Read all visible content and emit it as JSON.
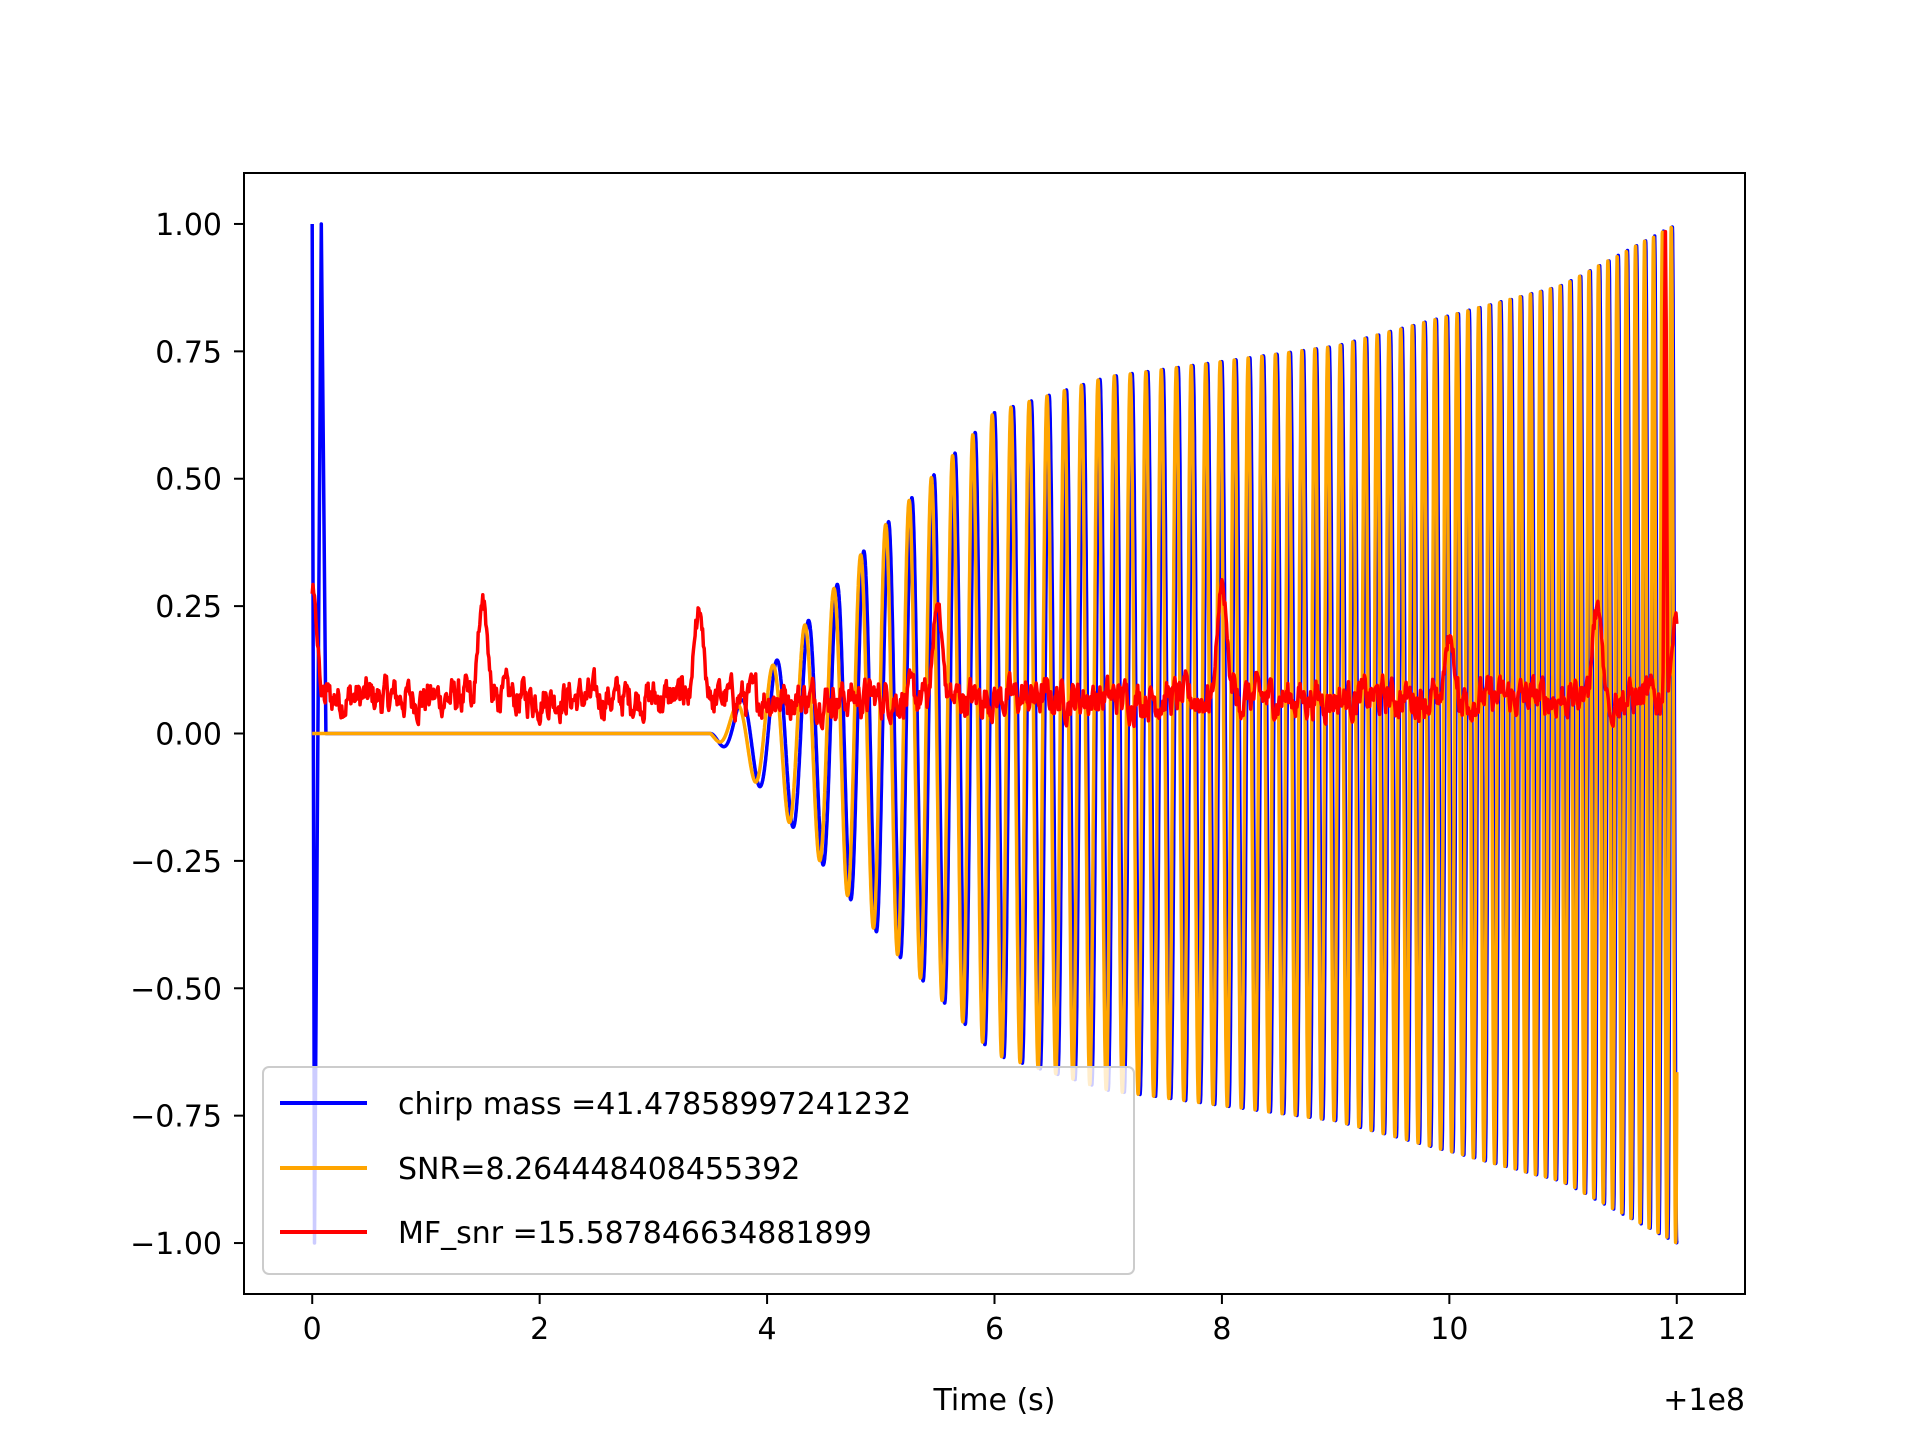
{
  "chart_data": {
    "type": "line",
    "title": "",
    "xlabel": "Time (s)",
    "ylabel": "",
    "x_offset_label": "+1e8",
    "xlim": [
      -0.6,
      12.6
    ],
    "ylim": [
      -1.1,
      1.1
    ],
    "x_ticks": [
      0,
      2,
      4,
      6,
      8,
      10,
      12
    ],
    "x_tick_labels": [
      "0",
      "2",
      "4",
      "6",
      "8",
      "10",
      "12"
    ],
    "y_ticks": [
      1.0,
      0.75,
      0.5,
      0.25,
      0.0,
      -0.25,
      -0.5,
      -0.75,
      -1.0
    ],
    "y_tick_labels": [
      "1.00",
      "0.75",
      "0.50",
      "0.25",
      "0.00",
      "−0.25",
      "−0.50",
      "−0.75",
      "−1.00"
    ],
    "grid": false,
    "legend_position": "lower-left",
    "colors": {
      "chirp": "#0000ff",
      "snr": "#ffa500",
      "mf": "#ff0000"
    },
    "legend": [
      {
        "label": "chirp mass =41.47858997241232",
        "color": "#0000ff"
      },
      {
        "label": "SNR=8.264448408455392",
        "color": "#ffa500"
      },
      {
        "label": "MF_snr =15.587846634881899",
        "color": "#ff0000"
      }
    ],
    "series": [
      {
        "name": "chirp mass =41.47858997241232",
        "kind": "chirp-waveform",
        "x_start": 0,
        "x_end": 12,
        "onset": 3.5,
        "envelope": [
          [
            3.5,
            0.0
          ],
          [
            4.0,
            0.12
          ],
          [
            5.0,
            0.4
          ],
          [
            6.0,
            0.63
          ],
          [
            7.0,
            0.7
          ],
          [
            8.0,
            0.73
          ],
          [
            9.0,
            0.76
          ],
          [
            10.0,
            0.82
          ],
          [
            11.0,
            0.88
          ],
          [
            12.0,
            1.0
          ]
        ],
        "cycles_per_s": [
          [
            3.5,
            2.6
          ],
          [
            6.0,
            6.0
          ],
          [
            9.0,
            9.0
          ],
          [
            12.0,
            13.0
          ]
        ],
        "initial_spike": {
          "x": [
            0.0,
            0.02,
            0.08
          ],
          "y": [
            1.0,
            -1.0,
            1.0
          ]
        }
      },
      {
        "name": "SNR=8.264448408455392",
        "kind": "chirp-waveform",
        "x_start": 0,
        "x_end": 12,
        "onset": 3.5,
        "phase_lead_cycles": 0.12,
        "envelope": [
          [
            3.5,
            0.0
          ],
          [
            4.0,
            0.12
          ],
          [
            5.0,
            0.4
          ],
          [
            6.0,
            0.63
          ],
          [
            7.0,
            0.7
          ],
          [
            8.0,
            0.73
          ],
          [
            9.0,
            0.76
          ],
          [
            10.0,
            0.82
          ],
          [
            11.0,
            0.88
          ],
          [
            12.0,
            1.0
          ]
        ],
        "cycles_per_s": [
          [
            3.5,
            2.6
          ],
          [
            6.0,
            6.0
          ],
          [
            9.0,
            9.0
          ],
          [
            12.0,
            13.0
          ]
        ]
      },
      {
        "name": "MF_snr =15.587846634881899",
        "kind": "noise-trace",
        "x_start": 0,
        "x_end": 12,
        "baseline": 0.07,
        "peaks": [
          {
            "x": 0.0,
            "y": 0.28
          },
          {
            "x": 1.5,
            "y": 0.26
          },
          {
            "x": 3.4,
            "y": 0.24
          },
          {
            "x": 5.5,
            "y": 0.25
          },
          {
            "x": 8.0,
            "y": 0.29
          },
          {
            "x": 10.0,
            "y": 0.19
          },
          {
            "x": 11.3,
            "y": 0.25
          },
          {
            "x": 11.9,
            "y": 1.0
          },
          {
            "x": 12.0,
            "y": 0.23
          }
        ]
      }
    ]
  }
}
